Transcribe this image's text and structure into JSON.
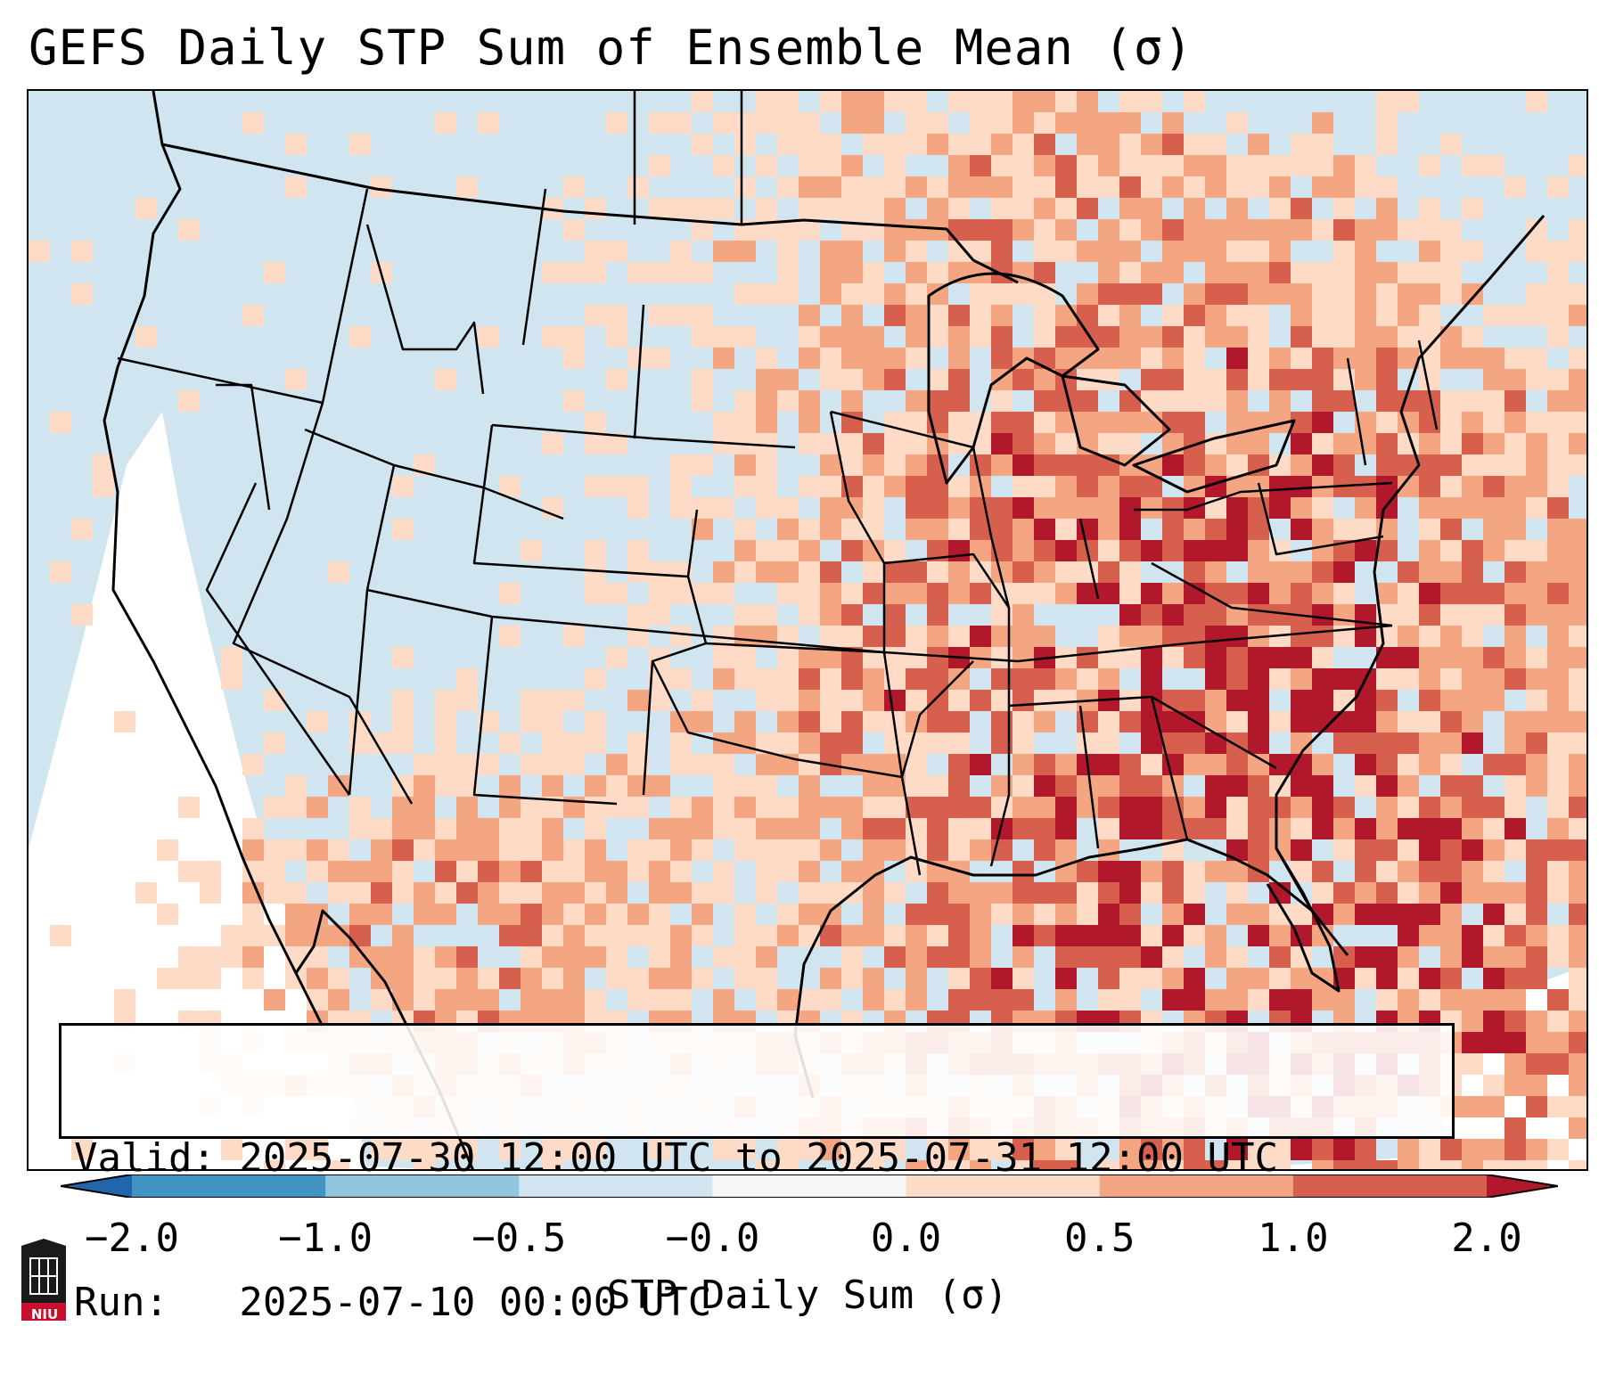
{
  "title": "GEFS Daily STP Sum of Ensemble Mean (σ)",
  "info": {
    "valid_line": "Valid: 2025-07-30 12:00 UTC to 2025-07-31 12:00 UTC",
    "run_line": "Run:   2025-07-10 00:00 UTC"
  },
  "colorbar": {
    "label": "STP Daily Sum (σ)",
    "ticks": [
      "−2.0",
      "−1.0",
      "−0.5",
      "−0.0",
      "0.0",
      "0.5",
      "1.0",
      "2.0"
    ],
    "colors": {
      "below_min": "#2166ac",
      "bins": [
        "#4393c3",
        "#92c5de",
        "#d1e5f0",
        "#f7f7f7",
        "#fddbc7",
        "#f4a582",
        "#d6604d"
      ],
      "above_max": "#b2182b"
    }
  },
  "map": {
    "background_color": "#d1e5f0",
    "outline_color": "#000000"
  },
  "logo": {
    "text": "NIU",
    "color": "#c8102e"
  }
}
